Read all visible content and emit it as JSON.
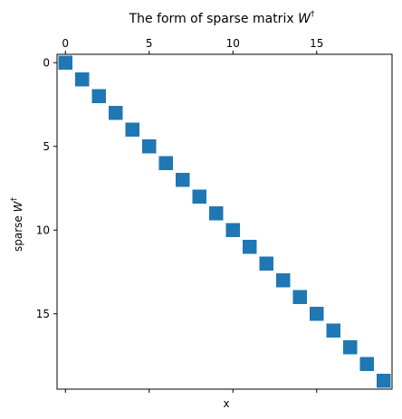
{
  "chart_data": {
    "type": "scatter",
    "title_prefix": "The form of sparse matrix",
    "title_symbol": "W",
    "title_superscript": "†",
    "xlabel": "x",
    "ylabel_prefix": "sparse",
    "ylabel_symbol": "W",
    "ylabel_superscript": "†",
    "xlim": [
      -0.5,
      19.5
    ],
    "ylim": [
      19.5,
      -0.5
    ],
    "x_ticks": [
      0,
      5,
      10,
      15
    ],
    "y_ticks": [
      0,
      5,
      10,
      15
    ],
    "x_tick_labels_position": "top",
    "bottom_ticks_labeled": false,
    "marker": "square",
    "color": "#1f77b4",
    "x": [
      0,
      1,
      2,
      3,
      4,
      5,
      6,
      7,
      8,
      9,
      10,
      11,
      12,
      13,
      14,
      15,
      16,
      17,
      18,
      19
    ],
    "y": [
      0,
      1,
      2,
      3,
      4,
      5,
      6,
      7,
      8,
      9,
      10,
      11,
      12,
      13,
      14,
      15,
      16,
      17,
      18,
      19
    ]
  }
}
